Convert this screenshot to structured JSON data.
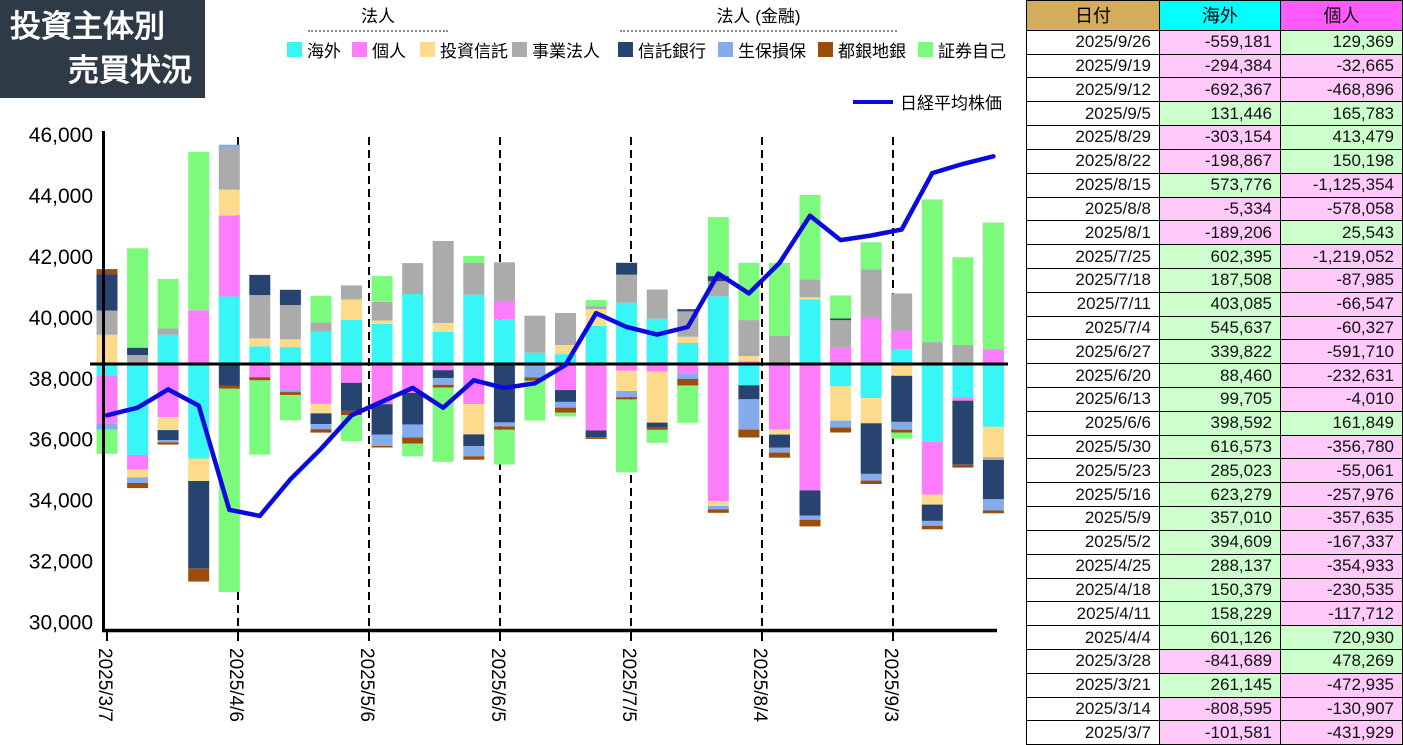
{
  "title": {
    "line1": "投資主体別",
    "line2": "売買状況"
  },
  "legend": {
    "groups": [
      {
        "label": "法人"
      },
      {
        "label": "法人 (金融)"
      }
    ],
    "items": [
      {
        "label": "海外",
        "color": "#38F6F6"
      },
      {
        "label": "個人",
        "color": "#FB7DFB"
      },
      {
        "label": "投資信託",
        "color": "#FCDC8C"
      },
      {
        "label": "事業法人",
        "color": "#ABABAB"
      },
      {
        "label": "信託銀行",
        "color": "#27436F"
      },
      {
        "label": "生保損保",
        "color": "#85ACEA"
      },
      {
        "label": "都銀地銀",
        "color": "#9C4D0C"
      },
      {
        "label": "証券自己",
        "color": "#7BFA7B"
      }
    ],
    "line_item": {
      "label": "日経平均株価",
      "color": "#0A0ADF"
    }
  },
  "chart_data": {
    "type": "bar",
    "subtype": "stacked-bar-with-line",
    "title": "投資主体別売買状況",
    "y_axis": {
      "min": 30000,
      "max": 46000,
      "step": 2000,
      "tick_labels": [
        "46,000",
        "44,000",
        "42,000",
        "40,000",
        "38,000",
        "36,000",
        "34,000",
        "32,000",
        "30,000"
      ]
    },
    "x_tick_labels": [
      "2025/3/7",
      "2025/4/6",
      "2025/5/6",
      "2025/6/5",
      "2025/7/5",
      "2025/8/4",
      "2025/9/3"
    ],
    "grid": "dashed-vertical-at-x-ticks",
    "legend_position": "top",
    "categories": [
      "2025/3/7",
      "2025/3/14",
      "2025/3/21",
      "2025/3/28",
      "2025/4/4",
      "2025/4/11",
      "2025/4/18",
      "2025/4/25",
      "2025/5/2",
      "2025/5/9",
      "2025/5/16",
      "2025/5/23",
      "2025/5/30",
      "2025/6/6",
      "2025/6/13",
      "2025/6/20",
      "2025/6/27",
      "2025/7/4",
      "2025/7/11",
      "2025/7/18",
      "2025/7/25",
      "2025/8/1",
      "2025/8/8",
      "2025/8/15",
      "2025/8/22",
      "2025/8/29",
      "2025/9/5",
      "2025/9/12",
      "2025/9/19",
      "2025/9/26"
    ],
    "series": [
      {
        "name": "海外",
        "color": "#38F6F6",
        "values": [
          -101581,
          -808595,
          261145,
          -841689,
          601126,
          158229,
          150379,
          288137,
          394609,
          357010,
          623279,
          285023,
          616573,
          398592,
          99705,
          88460,
          339822,
          545637,
          403085,
          187508,
          602395,
          -189206,
          -5334,
          573776,
          -198867,
          -303154,
          131446,
          -692367,
          -294384,
          -559181
        ]
      },
      {
        "name": "個人",
        "color": "#FB7DFB",
        "values": [
          -431929,
          -130907,
          -472935,
          478269,
          720930,
          -117712,
          -230535,
          -354933,
          -167337,
          -357635,
          -257976,
          -55061,
          -356780,
          161849,
          -4010,
          -232631,
          -591710,
          -60327,
          -66547,
          -87985,
          -1219052,
          25543,
          -578058,
          -1125354,
          150198,
          413479,
          165783,
          -468896,
          -32665,
          129369
        ]
      },
      {
        "name": "投資信託",
        "color": "#FCDC8C",
        "values": [
          260000,
          -70000,
          -115000,
          -200000,
          230000,
          70000,
          70000,
          -85000,
          180000,
          30000,
          0,
          80000,
          -270000,
          0,
          0,
          80000,
          150000,
          -180000,
          -455000,
          55000,
          -45000,
          45000,
          -45000,
          20000,
          -305000,
          -225000,
          -105000,
          -90000,
          0,
          -270000
        ]
      },
      {
        "name": "事業法人",
        "color": "#ABABAB",
        "values": [
          215000,
          80000,
          55000,
          0,
          375000,
          385000,
          305000,
          80000,
          125000,
          165000,
          275000,
          730000,
          285000,
          345000,
          330000,
          285000,
          25000,
          250000,
          260000,
          225000,
          135000,
          320000,
          250000,
          160000,
          240000,
          430000,
          330000,
          195000,
          170000,
          -25000
        ]
      },
      {
        "name": "信託銀行",
        "color": "#27436F",
        "values": [
          325000,
          65000,
          -90000,
          -780000,
          -195000,
          180000,
          135000,
          -95000,
          -250000,
          -270000,
          -280000,
          -70000,
          -105000,
          -520000,
          0,
          -105000,
          -60000,
          105000,
          -45000,
          20000,
          45000,
          -125000,
          -115000,
          -225000,
          15000,
          -450000,
          -410000,
          -145000,
          -570000,
          -350000
        ]
      },
      {
        "name": "生保損保",
        "color": "#85ACEA",
        "values": [
          -50000,
          -50000,
          -20000,
          0,
          25000,
          0,
          -20000,
          -45000,
          0,
          -100000,
          -115000,
          -60000,
          -90000,
          -35000,
          -115000,
          -50000,
          0,
          -55000,
          0,
          -45000,
          -30000,
          -270000,
          -45000,
          -35000,
          -60000,
          -60000,
          -70000,
          -45000,
          0,
          -100000
        ]
      },
      {
        "name": "都銀地銀",
        "color": "#9C4D0C",
        "values": [
          45000,
          -45000,
          -20000,
          -115000,
          -25000,
          -28000,
          -25000,
          -30000,
          -38000,
          -15000,
          -55000,
          -25000,
          -30000,
          -30000,
          -30000,
          -45000,
          -15000,
          -20000,
          -20000,
          -60000,
          -30000,
          -70000,
          -45000,
          -60000,
          -45000,
          -30000,
          -25000,
          -30000,
          -25000,
          -25000
        ]
      },
      {
        "name": "証券自己",
        "color": "#7BFA7B",
        "values": [
          -215000,
          885000,
          440000,
          1410000,
          -1810000,
          -660000,
          -225000,
          240000,
          -230000,
          230000,
          -115000,
          -660000,
          60000,
          -310000,
          -355000,
          -35000,
          55000,
          -650000,
          -115000,
          -330000,
          525000,
          510000,
          650000,
          750000,
          205000,
          240000,
          -55000,
          1270000,
          780000,
          1130000
        ]
      }
    ],
    "line_series": {
      "name": "日経平均株価",
      "color": "#0A0ADF",
      "values": [
        36800,
        37050,
        37650,
        37120,
        33700,
        33500,
        34700,
        35700,
        36800,
        37250,
        37700,
        37050,
        37950,
        37700,
        37850,
        38450,
        40150,
        39700,
        39450,
        39700,
        41450,
        40800,
        41800,
        43350,
        42550,
        42700,
        42900,
        44750,
        45050,
        45300
      ]
    }
  },
  "table": {
    "headers": [
      {
        "label": "日付",
        "bg": "#D3AC5C"
      },
      {
        "label": "海外",
        "bg": "#00FFFF"
      },
      {
        "label": "個人",
        "bg": "#FF5AFF"
      }
    ],
    "positive_bg": "#CCFFCC",
    "negative_bg": "#FFC9FA",
    "rows": [
      [
        "2025/9/26",
        "-559,181",
        "129,369"
      ],
      [
        "2025/9/19",
        "-294,384",
        "-32,665"
      ],
      [
        "2025/9/12",
        "-692,367",
        "-468,896"
      ],
      [
        "2025/9/5",
        "131,446",
        "165,783"
      ],
      [
        "2025/8/29",
        "-303,154",
        "413,479"
      ],
      [
        "2025/8/22",
        "-198,867",
        "150,198"
      ],
      [
        "2025/8/15",
        "573,776",
        "-1,125,354"
      ],
      [
        "2025/8/8",
        "-5,334",
        "-578,058"
      ],
      [
        "2025/8/1",
        "-189,206",
        "25,543"
      ],
      [
        "2025/7/25",
        "602,395",
        "-1,219,052"
      ],
      [
        "2025/7/18",
        "187,508",
        "-87,985"
      ],
      [
        "2025/7/11",
        "403,085",
        "-66,547"
      ],
      [
        "2025/7/4",
        "545,637",
        "-60,327"
      ],
      [
        "2025/6/27",
        "339,822",
        "-591,710"
      ],
      [
        "2025/6/20",
        "88,460",
        "-232,631"
      ],
      [
        "2025/6/13",
        "99,705",
        "-4,010"
      ],
      [
        "2025/6/6",
        "398,592",
        "161,849"
      ],
      [
        "2025/5/30",
        "616,573",
        "-356,780"
      ],
      [
        "2025/5/23",
        "285,023",
        "-55,061"
      ],
      [
        "2025/5/16",
        "623,279",
        "-257,976"
      ],
      [
        "2025/5/9",
        "357,010",
        "-357,635"
      ],
      [
        "2025/5/2",
        "394,609",
        "-167,337"
      ],
      [
        "2025/4/25",
        "288,137",
        "-354,933"
      ],
      [
        "2025/4/18",
        "150,379",
        "-230,535"
      ],
      [
        "2025/4/11",
        "158,229",
        "-117,712"
      ],
      [
        "2025/4/4",
        "601,126",
        "720,930"
      ],
      [
        "2025/3/28",
        "-841,689",
        "478,269"
      ],
      [
        "2025/3/21",
        "261,145",
        "-472,935"
      ],
      [
        "2025/3/14",
        "-808,595",
        "-130,907"
      ],
      [
        "2025/3/7",
        "-101,581",
        "-431,929"
      ]
    ]
  }
}
